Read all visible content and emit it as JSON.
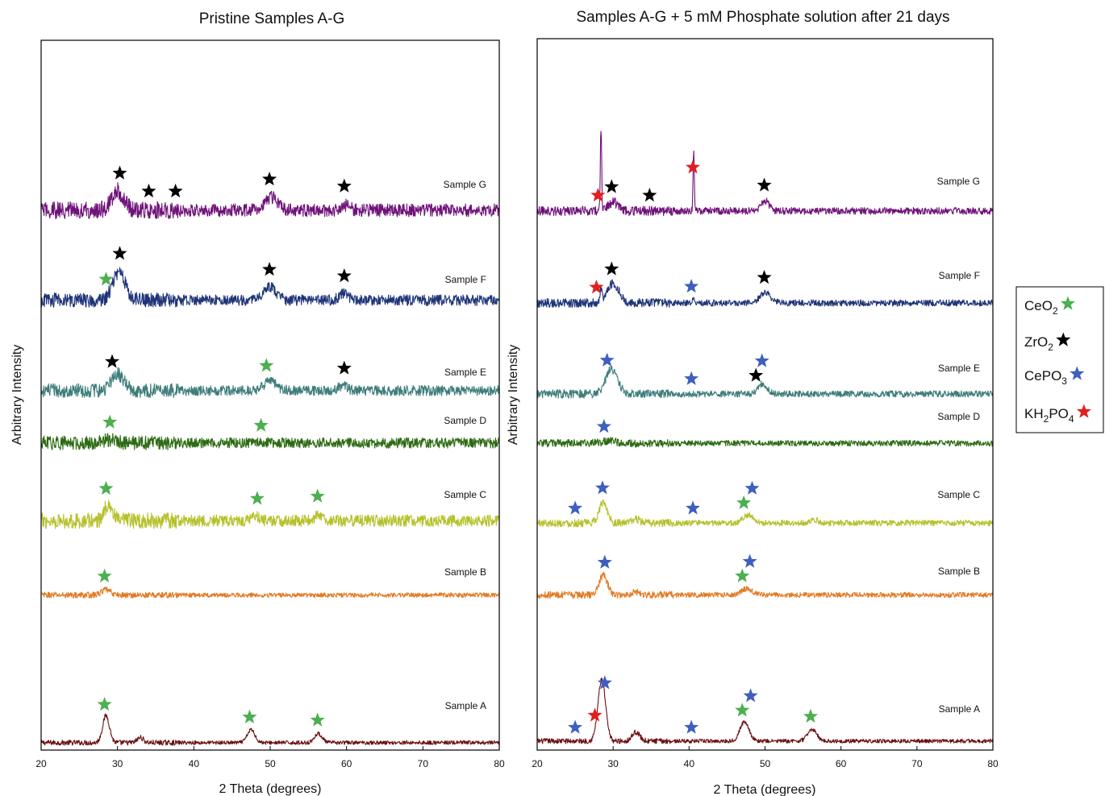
{
  "chart_data": [
    {
      "type": "line",
      "title": "Pristine Samples A-G",
      "xlabel": "2 Theta (degrees)",
      "ylabel": "Arbitrary Intensity",
      "xlim": [
        20,
        80
      ],
      "xticks": [
        "20",
        "30",
        "40",
        "50",
        "60",
        "70",
        "80"
      ],
      "y_ticks_shown": false,
      "series": [
        {
          "name": "Sample A",
          "color": "#6b0f12",
          "noise": 0.3,
          "peaks": [
            [
              28.5,
              4.2,
              0.45
            ],
            [
              33.0,
              0.8,
              0.4
            ],
            [
              47.5,
              2.0,
              0.5
            ],
            [
              56.3,
              1.4,
              0.5
            ]
          ],
          "markers": [
            {
              "phase": "CeO2",
              "x": 28.3
            },
            {
              "phase": "CeO2",
              "x": 47.3
            },
            {
              "phase": "CeO2",
              "x": 56.2
            }
          ]
        },
        {
          "name": "Sample B",
          "color": "#e07b24",
          "noise": 0.35,
          "peaks": [
            [
              28.5,
              0.8,
              0.6
            ]
          ],
          "markers": [
            {
              "phase": "CeO2",
              "x": 28.3
            }
          ]
        },
        {
          "name": "Sample C",
          "color": "#b6c12b",
          "noise": 0.9,
          "peaks": [
            [
              28.8,
              2.6,
              0.5
            ],
            [
              48.0,
              0.7,
              0.6
            ],
            [
              56.3,
              1.0,
              0.4
            ]
          ],
          "markers": [
            {
              "phase": "CeO2",
              "x": 28.5
            },
            {
              "phase": "CeO2",
              "x": 48.3
            },
            {
              "phase": "CeO2",
              "x": 56.2
            }
          ]
        },
        {
          "name": "Sample D",
          "color": "#2c6b12",
          "noise": 0.8,
          "peaks": [
            [
              29.0,
              0.5,
              0.8
            ]
          ],
          "markers": [
            {
              "phase": "CeO2",
              "x": 29.0
            },
            {
              "phase": "CeO2",
              "x": 48.8
            }
          ]
        },
        {
          "name": "Sample E",
          "color": "#3d7d7a",
          "noise": 0.8,
          "peaks": [
            [
              30.0,
              2.6,
              0.8
            ],
            [
              50.0,
              1.4,
              0.8
            ],
            [
              59.5,
              0.8,
              0.6
            ]
          ],
          "markers": [
            {
              "phase": "ZrO2",
              "x": 29.3
            },
            {
              "phase": "CeO2",
              "x": 49.5
            },
            {
              "phase": "ZrO2",
              "x": 59.7
            }
          ]
        },
        {
          "name": "Sample F",
          "color": "#1f3478",
          "noise": 0.85,
          "peaks": [
            [
              30.2,
              4.5,
              0.8
            ],
            [
              50.0,
              2.0,
              0.8
            ],
            [
              59.6,
              1.0,
              0.6
            ]
          ],
          "markers": [
            {
              "phase": "CeO2",
              "x": 28.5
            },
            {
              "phase": "ZrO2",
              "x": 30.3
            },
            {
              "phase": "ZrO2",
              "x": 49.9
            },
            {
              "phase": "ZrO2",
              "x": 59.7
            }
          ]
        },
        {
          "name": "Sample G",
          "color": "#6f1279",
          "noise": 1.0,
          "peaks": [
            [
              30.0,
              3.0,
              0.8
            ],
            [
              50.2,
              2.0,
              0.8
            ],
            [
              59.8,
              0.8,
              0.6
            ]
          ],
          "markers": [
            {
              "phase": "ZrO2",
              "x": 30.3
            },
            {
              "phase": "ZrO2",
              "x": 34.1
            },
            {
              "phase": "ZrO2",
              "x": 37.6
            },
            {
              "phase": "ZrO2",
              "x": 49.9
            },
            {
              "phase": "ZrO2",
              "x": 59.7
            }
          ]
        }
      ]
    },
    {
      "type": "line",
      "title": "Samples A-G + 5 mM Phosphate solution after 21 days",
      "xlabel": "2 Theta (degrees)",
      "ylabel": "Arbitrary Intensity",
      "xlim": [
        20,
        80
      ],
      "xticks": [
        "20",
        "30",
        "40",
        "50",
        "60",
        "70",
        "80"
      ],
      "y_ticks_shown": false,
      "series": [
        {
          "name": "Sample A",
          "color": "#6b0f12",
          "noise": 0.3,
          "peaks": [
            [
              28.5,
              9.5,
              0.5
            ],
            [
              33.0,
              1.4,
              0.5
            ],
            [
              47.3,
              3.0,
              0.6
            ],
            [
              56.2,
              1.8,
              0.6
            ]
          ],
          "markers": [
            {
              "phase": "CePO3",
              "x": 25.0
            },
            {
              "phase": "KH2PO4",
              "x": 27.6
            },
            {
              "phase": "CePO3",
              "x": 28.9
            },
            {
              "phase": "CePO3",
              "x": 40.3
            },
            {
              "phase": "CeO2",
              "x": 47.0
            },
            {
              "phase": "CePO3",
              "x": 48.1
            },
            {
              "phase": "CeO2",
              "x": 56.0
            }
          ]
        },
        {
          "name": "Sample B",
          "color": "#e07b24",
          "noise": 0.4,
          "peaks": [
            [
              28.7,
              3.0,
              0.55
            ],
            [
              33.0,
              0.5,
              0.5
            ],
            [
              47.6,
              1.0,
              0.7
            ]
          ],
          "markers": [
            {
              "phase": "CePO3",
              "x": 28.9
            },
            {
              "phase": "CeO2",
              "x": 47.0
            },
            {
              "phase": "CePO3",
              "x": 48.0
            }
          ]
        },
        {
          "name": "Sample C",
          "color": "#b6c12b",
          "noise": 0.45,
          "peaks": [
            [
              28.7,
              3.2,
              0.55
            ],
            [
              33.0,
              0.6,
              0.5
            ],
            [
              47.8,
              1.2,
              0.7
            ],
            [
              56.5,
              0.5,
              0.6
            ]
          ],
          "markers": [
            {
              "phase": "CePO3",
              "x": 25.0
            },
            {
              "phase": "CePO3",
              "x": 28.6
            },
            {
              "phase": "CePO3",
              "x": 40.5
            },
            {
              "phase": "CeO2",
              "x": 47.2
            },
            {
              "phase": "CePO3",
              "x": 48.3
            }
          ]
        },
        {
          "name": "Sample D",
          "color": "#2c6b12",
          "noise": 0.45,
          "peaks": [
            [
              29.5,
              0.4,
              0.9
            ]
          ],
          "markers": [
            {
              "phase": "CePO3",
              "x": 28.8
            }
          ]
        },
        {
          "name": "Sample E",
          "color": "#3d7d7a",
          "noise": 0.5,
          "peaks": [
            [
              29.8,
              3.8,
              0.8
            ],
            [
              49.7,
              1.6,
              0.6
            ]
          ],
          "markers": [
            {
              "phase": "CePO3",
              "x": 29.2
            },
            {
              "phase": "CePO3",
              "x": 40.3
            },
            {
              "phase": "ZrO2",
              "x": 48.8
            },
            {
              "phase": "CePO3",
              "x": 49.6
            }
          ]
        },
        {
          "name": "Sample F",
          "color": "#1f3478",
          "noise": 0.5,
          "peaks": [
            [
              28.4,
              2.0,
              0.12
            ],
            [
              30.0,
              3.0,
              0.8
            ],
            [
              40.5,
              0.8,
              0.12
            ],
            [
              50.0,
              1.6,
              0.7
            ]
          ],
          "markers": [
            {
              "phase": "KH2PO4",
              "x": 27.8
            },
            {
              "phase": "ZrO2",
              "x": 29.8
            },
            {
              "phase": "CePO3",
              "x": 40.3
            },
            {
              "phase": "ZrO2",
              "x": 49.9
            }
          ]
        },
        {
          "name": "Sample G",
          "color": "#6f1279",
          "noise": 0.55,
          "peaks": [
            [
              28.4,
              13.0,
              0.09
            ],
            [
              30.0,
              1.4,
              0.6
            ],
            [
              40.6,
              9.5,
              0.08
            ],
            [
              50.0,
              1.6,
              0.5
            ]
          ],
          "markers": [
            {
              "phase": "KH2PO4",
              "x": 28.0
            },
            {
              "phase": "ZrO2",
              "x": 29.8
            },
            {
              "phase": "ZrO2",
              "x": 34.8
            },
            {
              "phase": "KH2PO4",
              "x": 40.5
            },
            {
              "phase": "ZrO2",
              "x": 49.9
            }
          ]
        }
      ]
    }
  ],
  "legend": {
    "placement": "right",
    "items": [
      {
        "phase": "CeO2",
        "base": "CeO",
        "sub": "2",
        "tail": "",
        "color": "#4caf50"
      },
      {
        "phase": "ZrO2",
        "base": "ZrO",
        "sub": "2",
        "tail": "",
        "color": "#000000"
      },
      {
        "phase": "CePO3",
        "base": "CePO",
        "sub": "3",
        "tail": "",
        "color": "#3f5fbf"
      },
      {
        "phase": "KH2PO4",
        "base": "KH",
        "sub": "2",
        "tail": "PO",
        "sub2": "4",
        "color": "#e02020"
      }
    ]
  }
}
